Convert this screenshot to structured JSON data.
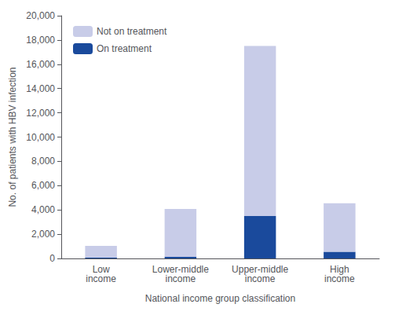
{
  "chart_data": {
    "type": "bar",
    "stacked": true,
    "categories": [
      "Low\nincome",
      "Lower-middle\nincome",
      "Upper-middle\nincome",
      "High\nincome"
    ],
    "series": [
      {
        "name": "On treatment",
        "color": "#1a4a9c",
        "values": [
          80,
          130,
          3500,
          550
        ]
      },
      {
        "name": "Not on treatment",
        "color": "#c8cce8",
        "values": [
          950,
          3950,
          14000,
          4000
        ]
      }
    ],
    "xlabel": "National income group classification",
    "ylabel": "No. of patients with HBV infection",
    "ylim": [
      0,
      20000
    ],
    "yticks": [
      0,
      {
        "value": 2000,
        "label": "2,000"
      },
      {
        "value": 4000,
        "label": "4,000"
      },
      {
        "value": 6000,
        "label": "6,000"
      },
      {
        "value": 8000,
        "label": "8,000"
      },
      {
        "value": 10000,
        "label": "10,000"
      },
      {
        "value": 12000,
        "label": "12,000"
      },
      {
        "value": 14000,
        "label": "14,000"
      },
      {
        "value": 16000,
        "label": "16,000"
      },
      {
        "value": 18000,
        "label": "18,000"
      },
      {
        "value": 20000,
        "label": "20,000"
      }
    ],
    "grid": false,
    "legend": "upper left"
  }
}
